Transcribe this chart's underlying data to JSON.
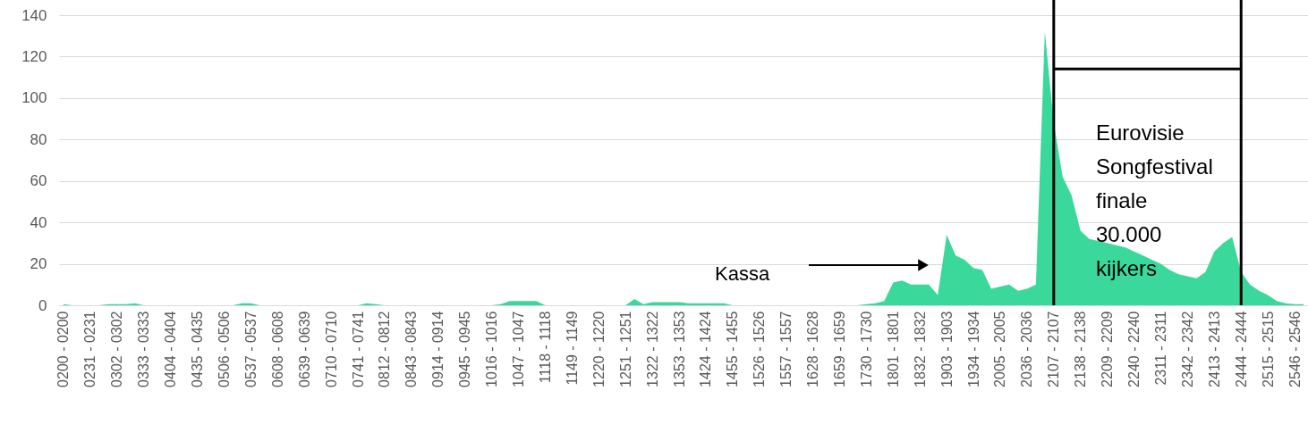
{
  "chart_data": {
    "type": "area",
    "categories": [
      "0200 - 0200",
      null,
      null,
      "0231 - 0231",
      null,
      null,
      "0302 - 0302",
      null,
      null,
      "0333 - 0333",
      null,
      null,
      "0404 - 0404",
      null,
      null,
      "0435 - 0435",
      null,
      null,
      "0506 - 0506",
      null,
      null,
      "0537 - 0537",
      null,
      null,
      "0608 - 0608",
      null,
      null,
      "0639 - 0639",
      null,
      null,
      "0710 - 0710",
      null,
      null,
      "0741 - 0741",
      null,
      null,
      "0812 - 0812",
      null,
      null,
      "0843 - 0843",
      null,
      null,
      "0914 - 0914",
      null,
      null,
      "0945 - 0945",
      null,
      null,
      "1016 - 1016",
      null,
      null,
      "1047 - 1047",
      null,
      null,
      "1118 - 1118",
      null,
      null,
      "1149 - 1149",
      null,
      null,
      "1220 - 1220",
      null,
      null,
      "1251 - 1251",
      null,
      null,
      "1322 - 1322",
      null,
      null,
      "1353 - 1353",
      null,
      null,
      "1424 - 1424",
      null,
      null,
      "1455 - 1455",
      null,
      null,
      "1526 - 1526",
      null,
      null,
      "1557 - 1557",
      null,
      null,
      "1628 - 1628",
      null,
      null,
      "1659 - 1659",
      null,
      null,
      "1730 - 1730",
      null,
      null,
      "1801 - 1801",
      null,
      null,
      "1832 - 1832",
      null,
      null,
      "1903 - 1903",
      null,
      null,
      "1934 - 1934",
      null,
      null,
      "2005 - 2005",
      null,
      null,
      "2036 - 2036",
      null,
      null,
      "2107 - 2107",
      null,
      null,
      "2138 - 2138",
      null,
      null,
      "2209 - 2209",
      null,
      null,
      "2240 - 2240",
      null,
      null,
      "2311 - 2311",
      null,
      null,
      "2342 - 2342",
      null,
      null,
      "2413 - 2413",
      null,
      null,
      "2444 - 2444",
      null,
      null,
      "2515 - 2515",
      null,
      null,
      "2546 - 2546",
      null
    ],
    "series": [
      {
        "color": "#3ad99b",
        "values": [
          0.5,
          0,
          0,
          0,
          0,
          0.5,
          0.5,
          0.5,
          1,
          0,
          0,
          0,
          0,
          0,
          0,
          0,
          0,
          0,
          0,
          0,
          1,
          1,
          0,
          0,
          0,
          0,
          0,
          0,
          0,
          0,
          0,
          0,
          0,
          0,
          1,
          0.5,
          0,
          0,
          0,
          0,
          0,
          0,
          0,
          0,
          0,
          0,
          0,
          0,
          0,
          0.5,
          2,
          2,
          2,
          2,
          0,
          0,
          0,
          0,
          0,
          0,
          0,
          0,
          0,
          0,
          3,
          0.5,
          1.5,
          1.5,
          1.5,
          1.5,
          1,
          1,
          1,
          1,
          1,
          0,
          0,
          0,
          0,
          0,
          0,
          0,
          0,
          0,
          0,
          0,
          0,
          0,
          0,
          0,
          0.5,
          1,
          2,
          11,
          12,
          10,
          10,
          10,
          5,
          34,
          24,
          22,
          18,
          17,
          8,
          9,
          10,
          7,
          8,
          10,
          132,
          88,
          62,
          53,
          36,
          32,
          31,
          30,
          29,
          28,
          26,
          24,
          22,
          20,
          17,
          15,
          14,
          13,
          16,
          26,
          30,
          33,
          16,
          10,
          7,
          5,
          2,
          1,
          0.5,
          0.5
        ]
      },
      {
        "type": "line",
        "color": "#000000",
        "x": [
          "2107 - 2107",
          "2444 - 2444"
        ],
        "values": [
          114,
          114
        ]
      }
    ],
    "ylim": [
      0,
      140
    ],
    "yticks": [
      0,
      20,
      40,
      60,
      80,
      100,
      120,
      140
    ],
    "grid": "y",
    "ref_lines": [
      {
        "axis": "x",
        "value": "2107 - 2107",
        "color": "#000000"
      },
      {
        "axis": "x",
        "value": "2444 - 2444",
        "color": "#000000"
      }
    ],
    "annotations": [
      "Kassa",
      "Eurovisie Songfestival finale 30.000 kijkers"
    ]
  }
}
